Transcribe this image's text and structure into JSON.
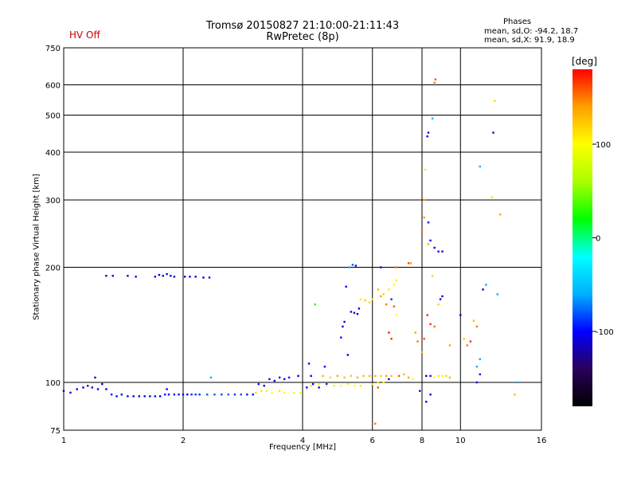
{
  "chart_data": {
    "type": "scatter",
    "title": "Tromsø 20150827 21:10:00-21:11:43",
    "subtitle": "RwPretec (8p)",
    "status_label": "HV Off",
    "status_color": "#cc0000",
    "xlabel": "Frequency [MHz]",
    "ylabel": "Stationary phase Virtual Height [km]",
    "x_scale": "log2",
    "y_scale": "log",
    "xlim": [
      1,
      16
    ],
    "ylim": [
      75,
      750
    ],
    "x_ticks": [
      1,
      2,
      4,
      6,
      8,
      10,
      16
    ],
    "x_tick_labels": [
      "1",
      "2",
      "4",
      "6",
      "8",
      "10",
      "16"
    ],
    "y_ticks": [
      75,
      100,
      200,
      300,
      400,
      500,
      600,
      750
    ],
    "y_tick_labels": [
      "75",
      "100",
      "200",
      "300",
      "400",
      "500",
      "600",
      "750"
    ],
    "grid": true,
    "phases": {
      "heading": "Phases",
      "o_line": "mean, sd,O: -94.2, 18.7",
      "x_line": "mean, sd,X:  91.9, 18.9"
    },
    "colorbar": {
      "label": "[deg]",
      "tick_labels": [
        "100",
        "0",
        "-100"
      ],
      "tick_values": [
        100,
        0,
        -100
      ],
      "range": [
        -180,
        180
      ],
      "stops": [
        "#000000",
        "#2a005a",
        "#0000ff",
        "#00b0ff",
        "#00ffff",
        "#00ff00",
        "#aaff00",
        "#ffff00",
        "#ffa000",
        "#ff0000"
      ]
    },
    "series": [
      {
        "points": [
          {
            "x": 1.0,
            "y": 95,
            "p": -110
          },
          {
            "x": 1.04,
            "y": 94,
            "p": -105
          },
          {
            "x": 1.08,
            "y": 96,
            "p": -100
          },
          {
            "x": 1.12,
            "y": 97,
            "p": -105
          },
          {
            "x": 1.15,
            "y": 98,
            "p": -110
          },
          {
            "x": 1.18,
            "y": 97,
            "p": -108
          },
          {
            "x": 1.2,
            "y": 103,
            "p": -110
          },
          {
            "x": 1.22,
            "y": 96,
            "p": -105
          },
          {
            "x": 1.25,
            "y": 99,
            "p": -110
          },
          {
            "x": 1.28,
            "y": 96,
            "p": -100
          },
          {
            "x": 1.32,
            "y": 93,
            "p": -100
          },
          {
            "x": 1.36,
            "y": 92,
            "p": -100
          },
          {
            "x": 1.4,
            "y": 93,
            "p": -102
          },
          {
            "x": 1.45,
            "y": 92,
            "p": -100
          },
          {
            "x": 1.5,
            "y": 92,
            "p": -100
          },
          {
            "x": 1.55,
            "y": 92,
            "p": -105
          },
          {
            "x": 1.6,
            "y": 92,
            "p": -102
          },
          {
            "x": 1.65,
            "y": 92,
            "p": -100
          },
          {
            "x": 1.7,
            "y": 92,
            "p": -104
          },
          {
            "x": 1.75,
            "y": 92,
            "p": -100
          },
          {
            "x": 1.8,
            "y": 93,
            "p": -95
          },
          {
            "x": 1.82,
            "y": 96,
            "p": -100
          },
          {
            "x": 1.84,
            "y": 93,
            "p": -102
          },
          {
            "x": 1.9,
            "y": 93,
            "p": -100
          },
          {
            "x": 1.95,
            "y": 93,
            "p": -104
          },
          {
            "x": 2.0,
            "y": 93,
            "p": -100
          },
          {
            "x": 2.05,
            "y": 93,
            "p": -100
          },
          {
            "x": 2.1,
            "y": 93,
            "p": -90
          },
          {
            "x": 2.15,
            "y": 93,
            "p": -85
          },
          {
            "x": 2.2,
            "y": 93,
            "p": -90
          },
          {
            "x": 2.3,
            "y": 93,
            "p": -80
          },
          {
            "x": 2.35,
            "y": 103,
            "p": -60
          },
          {
            "x": 2.4,
            "y": 93,
            "p": -80
          },
          {
            "x": 2.5,
            "y": 93,
            "p": -85
          },
          {
            "x": 2.6,
            "y": 93,
            "p": -80
          },
          {
            "x": 2.7,
            "y": 93,
            "p": -90
          },
          {
            "x": 2.8,
            "y": 93,
            "p": -85
          },
          {
            "x": 2.9,
            "y": 93,
            "p": -95
          },
          {
            "x": 3.0,
            "y": 93,
            "p": -95
          },
          {
            "x": 1.28,
            "y": 190,
            "p": -110
          },
          {
            "x": 1.33,
            "y": 190,
            "p": -112
          },
          {
            "x": 1.45,
            "y": 190,
            "p": -105
          },
          {
            "x": 1.52,
            "y": 189,
            "p": -110
          },
          {
            "x": 1.7,
            "y": 189,
            "p": -105
          },
          {
            "x": 1.74,
            "y": 191,
            "p": -100
          },
          {
            "x": 1.78,
            "y": 190,
            "p": -110
          },
          {
            "x": 1.82,
            "y": 192,
            "p": -105
          },
          {
            "x": 1.86,
            "y": 190,
            "p": -100
          },
          {
            "x": 1.9,
            "y": 189,
            "p": -112
          },
          {
            "x": 2.02,
            "y": 189,
            "p": -108
          },
          {
            "x": 2.08,
            "y": 189,
            "p": -110
          },
          {
            "x": 2.15,
            "y": 189,
            "p": -105
          },
          {
            "x": 2.25,
            "y": 188,
            "p": -110
          },
          {
            "x": 2.33,
            "y": 188,
            "p": -100
          },
          {
            "x": 3.05,
            "y": 94,
            "p": 120
          },
          {
            "x": 3.15,
            "y": 95,
            "p": 110
          },
          {
            "x": 3.25,
            "y": 95,
            "p": 90
          },
          {
            "x": 3.35,
            "y": 94,
            "p": 100
          },
          {
            "x": 3.5,
            "y": 95,
            "p": 110
          },
          {
            "x": 3.6,
            "y": 94,
            "p": 100
          },
          {
            "x": 3.8,
            "y": 94,
            "p": 95
          },
          {
            "x": 3.95,
            "y": 94,
            "p": 100
          },
          {
            "x": 3.1,
            "y": 99,
            "p": -100
          },
          {
            "x": 3.2,
            "y": 98,
            "p": -110
          },
          {
            "x": 3.3,
            "y": 102,
            "p": -105
          },
          {
            "x": 3.4,
            "y": 101,
            "p": -105
          },
          {
            "x": 3.5,
            "y": 103,
            "p": -110
          },
          {
            "x": 3.6,
            "y": 102,
            "p": -100
          },
          {
            "x": 3.7,
            "y": 103,
            "p": -95
          },
          {
            "x": 3.9,
            "y": 104,
            "p": -110
          },
          {
            "x": 4.1,
            "y": 97,
            "p": -105
          },
          {
            "x": 4.25,
            "y": 99,
            "p": -100
          },
          {
            "x": 4.4,
            "y": 97,
            "p": -110
          },
          {
            "x": 4.6,
            "y": 99,
            "p": -95
          },
          {
            "x": 4.15,
            "y": 112,
            "p": -105
          },
          {
            "x": 4.2,
            "y": 104,
            "p": -105
          },
          {
            "x": 4.3,
            "y": 160,
            "p": 30
          },
          {
            "x": 4.55,
            "y": 110,
            "p": -100
          },
          {
            "x": 4.2,
            "y": 98,
            "p": 110
          },
          {
            "x": 4.4,
            "y": 99,
            "p": 105
          },
          {
            "x": 4.6,
            "y": 98,
            "p": 100
          },
          {
            "x": 4.8,
            "y": 98,
            "p": 110
          },
          {
            "x": 5.0,
            "y": 98,
            "p": 100
          },
          {
            "x": 5.2,
            "y": 99,
            "p": 105
          },
          {
            "x": 5.4,
            "y": 98,
            "p": 95
          },
          {
            "x": 5.6,
            "y": 98,
            "p": 110
          },
          {
            "x": 4.5,
            "y": 104,
            "p": 130
          },
          {
            "x": 4.7,
            "y": 103,
            "p": 120
          },
          {
            "x": 4.9,
            "y": 104,
            "p": 140
          },
          {
            "x": 5.1,
            "y": 103,
            "p": 130
          },
          {
            "x": 5.3,
            "y": 104,
            "p": 125
          },
          {
            "x": 5.5,
            "y": 103,
            "p": 135
          },
          {
            "x": 5.7,
            "y": 104,
            "p": 130
          },
          {
            "x": 5.9,
            "y": 104,
            "p": 125
          },
          {
            "x": 6.1,
            "y": 104,
            "p": 130
          },
          {
            "x": 6.3,
            "y": 104,
            "p": 120
          },
          {
            "x": 6.5,
            "y": 104,
            "p": 140
          },
          {
            "x": 6.7,
            "y": 104,
            "p": 130
          },
          {
            "x": 5.6,
            "y": 165,
            "p": 110
          },
          {
            "x": 5.75,
            "y": 164,
            "p": 120
          },
          {
            "x": 5.9,
            "y": 162,
            "p": 115
          },
          {
            "x": 6.0,
            "y": 165,
            "p": 110
          },
          {
            "x": 5.3,
            "y": 153,
            "p": -100
          },
          {
            "x": 5.4,
            "y": 152,
            "p": -110
          },
          {
            "x": 5.5,
            "y": 151,
            "p": -110
          },
          {
            "x": 5.55,
            "y": 156,
            "p": -105
          },
          {
            "x": 5.0,
            "y": 131,
            "p": -95
          },
          {
            "x": 5.05,
            "y": 140,
            "p": -110
          },
          {
            "x": 5.1,
            "y": 144,
            "p": -105
          },
          {
            "x": 5.2,
            "y": 118,
            "p": -100
          },
          {
            "x": 5.15,
            "y": 178,
            "p": -100
          },
          {
            "x": 5.25,
            "y": 200,
            "p": -60
          },
          {
            "x": 5.35,
            "y": 203,
            "p": -80
          },
          {
            "x": 5.45,
            "y": 202,
            "p": -105
          },
          {
            "x": 6.0,
            "y": 99,
            "p": 105
          },
          {
            "x": 6.2,
            "y": 100,
            "p": 110
          },
          {
            "x": 6.4,
            "y": 100,
            "p": 100
          },
          {
            "x": 6.6,
            "y": 102,
            "p": -100
          },
          {
            "x": 6.2,
            "y": 175,
            "p": 130
          },
          {
            "x": 6.3,
            "y": 168,
            "p": 140
          },
          {
            "x": 6.4,
            "y": 170,
            "p": 120
          },
          {
            "x": 6.6,
            "y": 175,
            "p": 110
          },
          {
            "x": 6.7,
            "y": 165,
            "p": -90
          },
          {
            "x": 6.8,
            "y": 180,
            "p": 100
          },
          {
            "x": 6.9,
            "y": 185,
            "p": 105
          },
          {
            "x": 6.5,
            "y": 160,
            "p": 150
          },
          {
            "x": 6.6,
            "y": 135,
            "p": 175
          },
          {
            "x": 6.7,
            "y": 130,
            "p": 170
          },
          {
            "x": 6.8,
            "y": 158,
            "p": 160
          },
          {
            "x": 6.9,
            "y": 150,
            "p": 100
          },
          {
            "x": 6.3,
            "y": 200,
            "p": -105
          },
          {
            "x": 6.9,
            "y": 200,
            "p": 150
          },
          {
            "x": 7.4,
            "y": 205,
            "p": 160
          },
          {
            "x": 7.5,
            "y": 205,
            "p": 140
          },
          {
            "x": 7.0,
            "y": 104,
            "p": 160
          },
          {
            "x": 7.2,
            "y": 105,
            "p": 130
          },
          {
            "x": 7.4,
            "y": 103,
            "p": 140
          },
          {
            "x": 7.6,
            "y": 102,
            "p": 100
          },
          {
            "x": 7.9,
            "y": 95,
            "p": -100
          },
          {
            "x": 8.2,
            "y": 104,
            "p": -110
          },
          {
            "x": 8.4,
            "y": 104,
            "p": -100
          },
          {
            "x": 8.6,
            "y": 103,
            "p": 100
          },
          {
            "x": 8.8,
            "y": 104,
            "p": 110
          },
          {
            "x": 9.0,
            "y": 104,
            "p": 100
          },
          {
            "x": 9.2,
            "y": 104,
            "p": 120
          },
          {
            "x": 9.4,
            "y": 103,
            "p": 130
          },
          {
            "x": 8.2,
            "y": 89,
            "p": -100
          },
          {
            "x": 8.4,
            "y": 93,
            "p": -110
          },
          {
            "x": 6.1,
            "y": 78,
            "p": 150
          },
          {
            "x": 6.2,
            "y": 97,
            "p": 160
          },
          {
            "x": 7.7,
            "y": 135,
            "p": 140
          },
          {
            "x": 7.8,
            "y": 128,
            "p": 150
          },
          {
            "x": 8.0,
            "y": 120,
            "p": 130
          },
          {
            "x": 8.1,
            "y": 130,
            "p": 160
          },
          {
            "x": 8.25,
            "y": 150,
            "p": 170
          },
          {
            "x": 8.4,
            "y": 142,
            "p": 170
          },
          {
            "x": 8.6,
            "y": 140,
            "p": 150
          },
          {
            "x": 8.8,
            "y": 160,
            "p": 120
          },
          {
            "x": 8.9,
            "y": 165,
            "p": -105
          },
          {
            "x": 8.5,
            "y": 190,
            "p": 120
          },
          {
            "x": 9.0,
            "y": 168,
            "p": -110
          },
          {
            "x": 9.4,
            "y": 125,
            "p": 140
          },
          {
            "x": 8.3,
            "y": 230,
            "p": 130
          },
          {
            "x": 8.4,
            "y": 235,
            "p": -100
          },
          {
            "x": 8.6,
            "y": 225,
            "p": -110
          },
          {
            "x": 8.8,
            "y": 220,
            "p": -100
          },
          {
            "x": 9.0,
            "y": 220,
            "p": -105
          },
          {
            "x": 8.0,
            "y": 250,
            "p": 150
          },
          {
            "x": 8.1,
            "y": 270,
            "p": 140
          },
          {
            "x": 8.3,
            "y": 262,
            "p": -100
          },
          {
            "x": 8.1,
            "y": 300,
            "p": 140
          },
          {
            "x": 8.15,
            "y": 360,
            "p": 110
          },
          {
            "x": 8.3,
            "y": 450,
            "p": -110
          },
          {
            "x": 8.5,
            "y": 490,
            "p": -60
          },
          {
            "x": 8.6,
            "y": 608,
            "p": 150
          },
          {
            "x": 8.65,
            "y": 620,
            "p": 160
          },
          {
            "x": 8.25,
            "y": 440,
            "p": -105
          },
          {
            "x": 10.0,
            "y": 150,
            "p": -110
          },
          {
            "x": 10.2,
            "y": 130,
            "p": 120
          },
          {
            "x": 10.4,
            "y": 125,
            "p": 150
          },
          {
            "x": 10.6,
            "y": 128,
            "p": 170
          },
          {
            "x": 10.8,
            "y": 145,
            "p": 130
          },
          {
            "x": 11.0,
            "y": 140,
            "p": 150
          },
          {
            "x": 11.0,
            "y": 110,
            "p": -60
          },
          {
            "x": 11.2,
            "y": 115,
            "p": -60
          },
          {
            "x": 11.0,
            "y": 100,
            "p": -100
          },
          {
            "x": 11.2,
            "y": 105,
            "p": -95
          },
          {
            "x": 11.4,
            "y": 175,
            "p": -110
          },
          {
            "x": 11.6,
            "y": 180,
            "p": -60
          },
          {
            "x": 11.2,
            "y": 367,
            "p": -60
          },
          {
            "x": 12.1,
            "y": 450,
            "p": -120
          },
          {
            "x": 12.2,
            "y": 545,
            "p": 120
          },
          {
            "x": 12.0,
            "y": 305,
            "p": 110
          },
          {
            "x": 12.6,
            "y": 275,
            "p": 140
          },
          {
            "x": 12.4,
            "y": 170,
            "p": -60
          },
          {
            "x": 13.9,
            "y": 100,
            "p": -60
          },
          {
            "x": 13.7,
            "y": 93,
            "p": 130
          }
        ]
      }
    ]
  }
}
